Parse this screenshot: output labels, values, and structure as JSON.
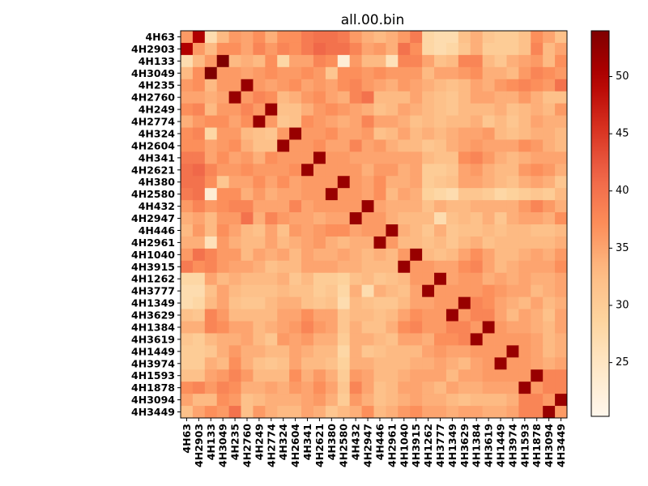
{
  "chart_data": {
    "type": "heatmap",
    "title": "all.00.bin",
    "x_labels": [
      "4H63",
      "4H2903",
      "4H133",
      "4H3049",
      "4H235",
      "4H2760",
      "4H249",
      "4H2774",
      "4H324",
      "4H2604",
      "4H341",
      "4H2621",
      "4H380",
      "4H2580",
      "4H432",
      "4H2947",
      "4H446",
      "4H2961",
      "4H1040",
      "4H3915",
      "4H1262",
      "4H3777",
      "4H1349",
      "4H3629",
      "4H1384",
      "4H3619",
      "4H1449",
      "4H3974",
      "4H1593",
      "4H1878",
      "4H3094",
      "4H3449"
    ],
    "y_labels": [
      "4H63",
      "4H2903",
      "4H133",
      "4H3049",
      "4H235",
      "4H2760",
      "4H249",
      "4H2774",
      "4H324",
      "4H2604",
      "4H341",
      "4H2621",
      "4H380",
      "4H2580",
      "4H432",
      "4H2947",
      "4H446",
      "4H2961",
      "4H1040",
      "4H3915",
      "4H1262",
      "4H3777",
      "4H1349",
      "4H3629",
      "4H1384",
      "4H3619",
      "4H1449",
      "4H3974",
      "4H1593",
      "4H1878",
      "4H3094",
      "4H3449"
    ],
    "values": [
      [
        36,
        50,
        27,
        33,
        36,
        35,
        37,
        34,
        37,
        37,
        39,
        40,
        40,
        39,
        36,
        34,
        33,
        34,
        36,
        39,
        28,
        27,
        27,
        32,
        34,
        31,
        30,
        30,
        32,
        37,
        35,
        32
      ],
      [
        50,
        36,
        33,
        37,
        37,
        35,
        38,
        36,
        38,
        37,
        39,
        41,
        40,
        40,
        38,
        35,
        36,
        34,
        40,
        37,
        28,
        27,
        28,
        31,
        34,
        30,
        30,
        30,
        32,
        38,
        33,
        35
      ],
      [
        27,
        33,
        36,
        54,
        33,
        34,
        33,
        37,
        28,
        35,
        35,
        38,
        37,
        23,
        36,
        33,
        33,
        26,
        38,
        38,
        35,
        32,
        33,
        38,
        38,
        33,
        31,
        34,
        35,
        36,
        33,
        37
      ],
      [
        33,
        37,
        54,
        36,
        36,
        35,
        36,
        37,
        36,
        36,
        37,
        36,
        31,
        37,
        37,
        36,
        37,
        36,
        36,
        36,
        33,
        35,
        35,
        36,
        37,
        34,
        34,
        33,
        36,
        38,
        37,
        36
      ],
      [
        36,
        37,
        33,
        36,
        36,
        52,
        36,
        35,
        36,
        37,
        35,
        36,
        35,
        37,
        38,
        36,
        35,
        34,
        36,
        35,
        34,
        33,
        32,
        33,
        35,
        34,
        36,
        37,
        38,
        37,
        36,
        40
      ],
      [
        35,
        35,
        34,
        35,
        52,
        36,
        38,
        37,
        33,
        34,
        36,
        37,
        35,
        34,
        38,
        40,
        33,
        33,
        33,
        35,
        33,
        32,
        31,
        33,
        35,
        35,
        34,
        34,
        36,
        34,
        32,
        32
      ],
      [
        37,
        38,
        33,
        36,
        36,
        38,
        36,
        52,
        32,
        32,
        34,
        36,
        37,
        36,
        35,
        34,
        32,
        33,
        35,
        34,
        33,
        32,
        31,
        33,
        33,
        33,
        34,
        32,
        33,
        34,
        33,
        36
      ],
      [
        34,
        36,
        37,
        37,
        35,
        37,
        52,
        36,
        31,
        32,
        37,
        36,
        35,
        34,
        35,
        38,
        35,
        35,
        34,
        32,
        33,
        32,
        33,
        33,
        34,
        31,
        33,
        31,
        33,
        35,
        34,
        34
      ],
      [
        37,
        38,
        28,
        36,
        36,
        33,
        32,
        31,
        36,
        52,
        36,
        36,
        37,
        35,
        35,
        36,
        32,
        33,
        35,
        33,
        34,
        33,
        34,
        35,
        35,
        36,
        33,
        32,
        33,
        34,
        34,
        33
      ],
      [
        37,
        37,
        35,
        36,
        37,
        34,
        32,
        32,
        52,
        36,
        36,
        37,
        35,
        35,
        38,
        35,
        36,
        34,
        33,
        33,
        31,
        32,
        34,
        35,
        36,
        35,
        35,
        35,
        37,
        36,
        34,
        33
      ],
      [
        39,
        39,
        35,
        37,
        35,
        36,
        34,
        37,
        36,
        36,
        36,
        52,
        36,
        36,
        35,
        35,
        35,
        35,
        35,
        35,
        33,
        32,
        32,
        37,
        38,
        36,
        34,
        33,
        34,
        35,
        35,
        35
      ],
      [
        40,
        41,
        38,
        36,
        36,
        37,
        36,
        36,
        36,
        37,
        52,
        36,
        36,
        36,
        36,
        34,
        36,
        36,
        34,
        35,
        30,
        30,
        31,
        35,
        36,
        34,
        33,
        33,
        36,
        37,
        36,
        34
      ],
      [
        40,
        40,
        37,
        31,
        35,
        35,
        37,
        35,
        37,
        35,
        36,
        36,
        36,
        52,
        36,
        35,
        37,
        34,
        34,
        35,
        30,
        31,
        32,
        35,
        35,
        34,
        33,
        32,
        34,
        35,
        34,
        31
      ],
      [
        39,
        40,
        23,
        37,
        37,
        34,
        36,
        34,
        35,
        35,
        36,
        36,
        52,
        36,
        36,
        35,
        37,
        33,
        35,
        34,
        29,
        28,
        27,
        31,
        31,
        30,
        28,
        29,
        30,
        31,
        30,
        33
      ],
      [
        36,
        38,
        36,
        37,
        38,
        38,
        35,
        35,
        35,
        38,
        35,
        36,
        36,
        36,
        36,
        52,
        35,
        34,
        34,
        34,
        32,
        34,
        33,
        33,
        34,
        34,
        34,
        34,
        36,
        38,
        36,
        34
      ],
      [
        34,
        35,
        33,
        36,
        36,
        40,
        34,
        38,
        36,
        35,
        35,
        34,
        35,
        35,
        52,
        36,
        36,
        34,
        33,
        33,
        33,
        27,
        32,
        33,
        32,
        34,
        31,
        34,
        35,
        35,
        34,
        37
      ],
      [
        33,
        36,
        33,
        37,
        35,
        33,
        32,
        35,
        32,
        36,
        35,
        36,
        37,
        37,
        35,
        36,
        36,
        52,
        34,
        33,
        31,
        34,
        31,
        32,
        32,
        33,
        32,
        33,
        33,
        32,
        32,
        33
      ],
      [
        34,
        34,
        26,
        36,
        34,
        33,
        33,
        35,
        33,
        34,
        35,
        36,
        34,
        33,
        34,
        34,
        52,
        36,
        33,
        33,
        32,
        33,
        31,
        33,
        34,
        32,
        33,
        33,
        33,
        33,
        33,
        34
      ],
      [
        36,
        40,
        38,
        36,
        36,
        33,
        35,
        34,
        35,
        33,
        35,
        34,
        34,
        35,
        34,
        33,
        34,
        33,
        36,
        52,
        33,
        32,
        33,
        35,
        37,
        35,
        33,
        33,
        34,
        35,
        34,
        36
      ],
      [
        39,
        37,
        38,
        36,
        35,
        35,
        34,
        32,
        33,
        33,
        35,
        35,
        35,
        34,
        34,
        33,
        33,
        33,
        52,
        36,
        36,
        35,
        35,
        37,
        38,
        35,
        33,
        34,
        35,
        35,
        35,
        37
      ],
      [
        28,
        28,
        35,
        33,
        34,
        33,
        33,
        33,
        34,
        31,
        33,
        30,
        30,
        29,
        32,
        33,
        31,
        32,
        33,
        36,
        36,
        52,
        35,
        36,
        36,
        34,
        35,
        34,
        35,
        34,
        34,
        35
      ],
      [
        27,
        27,
        32,
        35,
        33,
        32,
        32,
        32,
        33,
        32,
        32,
        30,
        31,
        28,
        34,
        27,
        34,
        33,
        32,
        35,
        52,
        36,
        36,
        36,
        36,
        37,
        36,
        35,
        35,
        33,
        34,
        35
      ],
      [
        27,
        28,
        33,
        35,
        32,
        31,
        31,
        33,
        34,
        34,
        32,
        31,
        32,
        27,
        33,
        32,
        31,
        31,
        33,
        35,
        35,
        36,
        36,
        52,
        38,
        37,
        35,
        34,
        33,
        35,
        33,
        34
      ],
      [
        32,
        31,
        38,
        36,
        33,
        33,
        33,
        33,
        35,
        35,
        37,
        35,
        35,
        31,
        33,
        33,
        32,
        33,
        35,
        37,
        36,
        36,
        52,
        36,
        38,
        38,
        35,
        33,
        35,
        34,
        32,
        35
      ],
      [
        34,
        34,
        38,
        37,
        35,
        35,
        33,
        34,
        35,
        36,
        38,
        36,
        35,
        31,
        34,
        32,
        32,
        34,
        37,
        38,
        36,
        36,
        38,
        38,
        36,
        52,
        36,
        35,
        35,
        34,
        33,
        35
      ],
      [
        31,
        30,
        33,
        34,
        34,
        35,
        33,
        31,
        36,
        35,
        36,
        34,
        34,
        30,
        34,
        34,
        33,
        32,
        35,
        35,
        34,
        37,
        37,
        38,
        52,
        36,
        36,
        36,
        36,
        35,
        33,
        34
      ],
      [
        30,
        30,
        31,
        34,
        36,
        34,
        34,
        33,
        33,
        35,
        34,
        33,
        33,
        28,
        34,
        31,
        32,
        33,
        33,
        33,
        35,
        36,
        35,
        35,
        36,
        36,
        36,
        52,
        36,
        35,
        33,
        34
      ],
      [
        30,
        30,
        34,
        33,
        37,
        34,
        32,
        31,
        32,
        35,
        33,
        33,
        32,
        29,
        34,
        34,
        33,
        33,
        33,
        34,
        34,
        35,
        34,
        33,
        35,
        36,
        52,
        36,
        36,
        35,
        34,
        35
      ],
      [
        32,
        32,
        35,
        36,
        38,
        36,
        33,
        33,
        33,
        37,
        34,
        36,
        34,
        30,
        36,
        35,
        33,
        33,
        34,
        35,
        35,
        35,
        33,
        35,
        35,
        36,
        36,
        36,
        36,
        52,
        38,
        38
      ],
      [
        37,
        38,
        36,
        38,
        37,
        34,
        34,
        35,
        34,
        36,
        35,
        37,
        35,
        31,
        38,
        35,
        32,
        33,
        35,
        35,
        34,
        33,
        35,
        34,
        34,
        35,
        35,
        35,
        52,
        36,
        38,
        38
      ],
      [
        35,
        33,
        33,
        37,
        36,
        32,
        33,
        34,
        34,
        34,
        35,
        36,
        34,
        30,
        36,
        34,
        32,
        33,
        34,
        35,
        34,
        34,
        33,
        32,
        33,
        33,
        33,
        34,
        38,
        38,
        36,
        52
      ],
      [
        32,
        35,
        37,
        36,
        40,
        32,
        36,
        34,
        33,
        33,
        35,
        34,
        31,
        33,
        34,
        37,
        33,
        34,
        36,
        37,
        35,
        35,
        34,
        35,
        35,
        34,
        34,
        35,
        38,
        38,
        52,
        36
      ]
    ],
    "vmin": 20.3,
    "vmax": 54,
    "colormap": "OrRd",
    "colorbar_ticks": [
      25,
      30,
      35,
      40,
      45,
      50
    ],
    "grid": false
  }
}
